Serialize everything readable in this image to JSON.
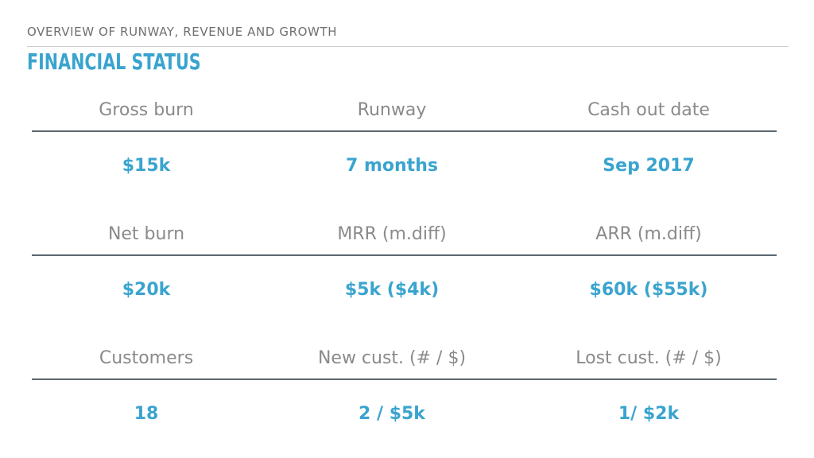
{
  "header": {
    "subtitle": "OVERVIEW OF RUNWAY, REVENUE AND GROWTH",
    "title": "FINANCIAL STATUS"
  },
  "colors": {
    "accent": "#3aa4cf",
    "label_gray": "#8a8a8a",
    "rule_dark": "#5b6770"
  },
  "sections": [
    {
      "labels": [
        "Gross burn",
        "Runway",
        "Cash out date"
      ],
      "values": [
        "$15k",
        "7 months",
        "Sep 2017"
      ]
    },
    {
      "labels": [
        "Net burn",
        "MRR (m.diff)",
        "ARR (m.diff)"
      ],
      "values": [
        "$20k",
        "$5k ($4k)",
        "$60k ($55k)"
      ]
    },
    {
      "labels": [
        "Customers",
        "New cust. (# / $)",
        "Lost cust. (# / $)"
      ],
      "values": [
        "18",
        "2 / $5k",
        "1/ $2k"
      ]
    }
  ]
}
